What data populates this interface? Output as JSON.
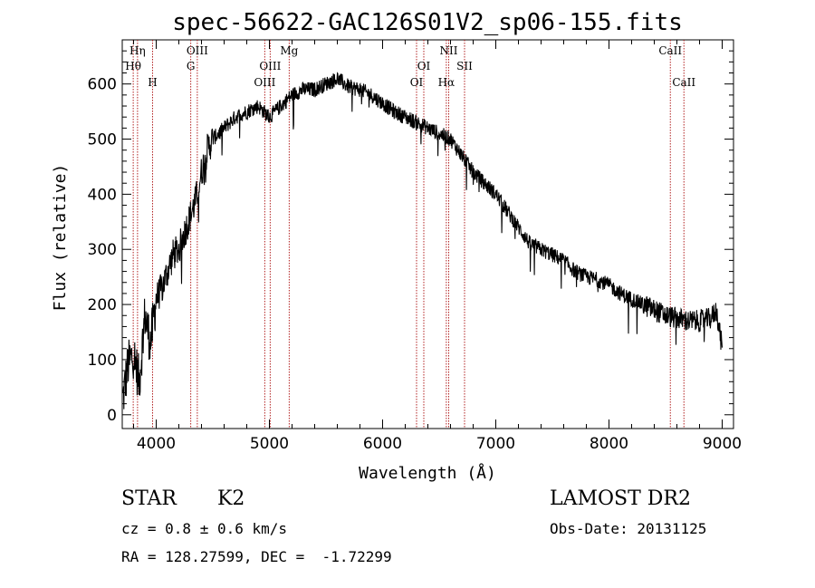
{
  "chart_data": {
    "type": "line",
    "title": "spec-56622-GAC126S01V2_sp06-155.fits",
    "xlabel": "Wavelength (Å)",
    "ylabel": "Flux (relative)",
    "xlim": [
      3700,
      9100
    ],
    "ylim": [
      -25,
      680
    ],
    "xticks": [
      4000,
      5000,
      6000,
      7000,
      8000,
      9000
    ],
    "yticks": [
      0,
      100,
      200,
      300,
      400,
      500,
      600
    ],
    "series": [
      {
        "x": [
          3700,
          3750,
          3800,
          3850,
          3900,
          3950,
          4000,
          4050,
          4100,
          4150,
          4200,
          4250,
          4300,
          4350,
          4400,
          4450,
          4500,
          4600,
          4700,
          4800,
          4900,
          5000,
          5100,
          5200,
          5300,
          5400,
          5500,
          5600,
          5700,
          5800,
          5900,
          6000,
          6100,
          6200,
          6300,
          6400,
          6500,
          6600,
          6700,
          6800,
          6900,
          7000,
          7100,
          7200,
          7300,
          7400,
          7500,
          7600,
          7700,
          7800,
          7900,
          8000,
          8100,
          8200,
          8300,
          8400,
          8500,
          8600,
          8700,
          8800,
          8900,
          8950,
          9000
        ],
        "values": [
          20,
          90,
          110,
          60,
          180,
          130,
          210,
          230,
          260,
          290,
          300,
          330,
          360,
          390,
          440,
          480,
          500,
          520,
          540,
          550,
          560,
          540,
          560,
          580,
          590,
          590,
          600,
          610,
          595,
          590,
          580,
          565,
          550,
          540,
          530,
          520,
          510,
          500,
          470,
          440,
          420,
          400,
          370,
          340,
          310,
          300,
          290,
          280,
          260,
          250,
          245,
          235,
          220,
          210,
          200,
          190,
          180,
          175,
          170,
          170,
          175,
          190,
          120
        ]
      }
    ],
    "spectral_lines": [
      {
        "label": "Hη",
        "x": 3835,
        "row": 0
      },
      {
        "label": "Hθ",
        "x": 3797,
        "row": 1
      },
      {
        "label": "H",
        "x": 3968,
        "row": 2
      },
      {
        "label": "OIII",
        "x": 4363,
        "row": 0
      },
      {
        "label": "G",
        "x": 4305,
        "row": 1
      },
      {
        "label": "Mg",
        "x": 5175,
        "row": 0
      },
      {
        "label": "OIII",
        "x": 5007,
        "row": 1
      },
      {
        "label": "OIII",
        "x": 4959,
        "row": 2
      },
      {
        "label": "NII",
        "x": 6584,
        "row": 0
      },
      {
        "label": "OI",
        "x": 6364,
        "row": 1
      },
      {
        "label": "OI",
        "x": 6300,
        "row": 2
      },
      {
        "label": "SII",
        "x": 6724,
        "row": 1
      },
      {
        "label": "Hα",
        "x": 6563,
        "row": 2
      },
      {
        "label": "CaII",
        "x": 8542,
        "row": 0
      },
      {
        "label": "CaII",
        "x": 8662,
        "row": 2
      }
    ],
    "line_color": "#000000",
    "marker_color": "#b22222"
  },
  "info": {
    "object_class": "STAR",
    "subclass": "K2",
    "survey": "LAMOST DR2",
    "cz": "cz = 0.8 ± 0.6 km/s",
    "obs_date": "Obs-Date: 20131125",
    "coords": "RA = 128.27599, DEC =  -1.72299"
  }
}
